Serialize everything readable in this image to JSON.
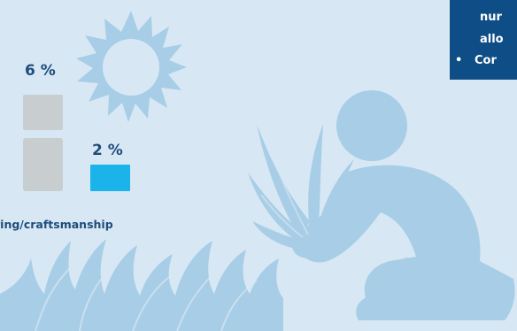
{
  "chart": {
    "percent_6": "6 %",
    "percent_2": "2 %",
    "category_label": "ring/craftsmanship"
  },
  "info_box": {
    "line1": "nur",
    "line2": "allo",
    "bullet": "•",
    "line3": "Cor"
  },
  "colors": {
    "background": "#d7e8f4",
    "illustration": "#a8cde6",
    "dark_blue": "#1e4c7b",
    "bar_grey": "#c8cdd0",
    "bar_blue": "#1ab4ea",
    "info_box": "#0e4d85"
  },
  "icons": [
    "sun-icon",
    "person-kneeling-with-plant-icon",
    "grass-icon"
  ]
}
